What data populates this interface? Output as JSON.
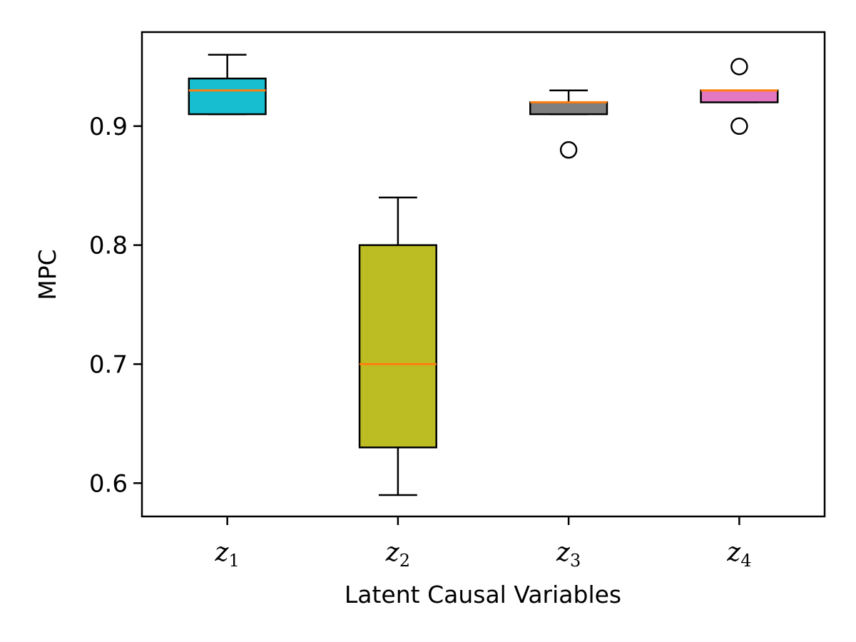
{
  "chart_data": {
    "type": "box",
    "title": "",
    "xlabel": "Latent Causal Variables",
    "ylabel": "MPC",
    "ylim": [
      0.572,
      0.979
    ],
    "yticks": [
      "0.6",
      "0.7",
      "0.8",
      "0.9"
    ],
    "categories": [
      {
        "base": "z",
        "sub": "1"
      },
      {
        "base": "z",
        "sub": "2"
      },
      {
        "base": "z",
        "sub": "3"
      },
      {
        "base": "z",
        "sub": "4"
      }
    ],
    "boxes": [
      {
        "q1": 0.91,
        "median": 0.93,
        "q3": 0.94,
        "whisker_low": 0.91,
        "whisker_high": 0.96,
        "outliers": [],
        "color": "#17becf"
      },
      {
        "q1": 0.63,
        "median": 0.7,
        "q3": 0.8,
        "whisker_low": 0.59,
        "whisker_high": 0.84,
        "outliers": [],
        "color": "#bcbd22"
      },
      {
        "q1": 0.91,
        "median": 0.92,
        "q3": 0.92,
        "whisker_low": 0.91,
        "whisker_high": 0.93,
        "outliers": [
          0.88
        ],
        "color": "#7f7f7f"
      },
      {
        "q1": 0.92,
        "median": 0.93,
        "q3": 0.93,
        "whisker_low": 0.92,
        "whisker_high": 0.93,
        "outliers": [
          0.95,
          0.9
        ],
        "color": "#e377c2"
      }
    ],
    "median_color": "#ff7f0e",
    "grid": false,
    "legend": "none"
  }
}
